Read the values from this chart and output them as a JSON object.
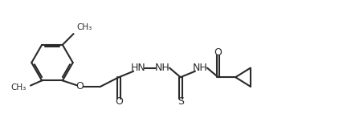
{
  "bg_color": "#ffffff",
  "bond_color": "#2a2a2a",
  "atom_color": "#2a2a2a",
  "line_width": 1.5,
  "font_size": 9,
  "figsize": [
    4.37,
    1.52
  ],
  "dpi": 100,
  "xlim": [
    0,
    10.5
  ],
  "ylim": [
    0,
    3.6
  ]
}
